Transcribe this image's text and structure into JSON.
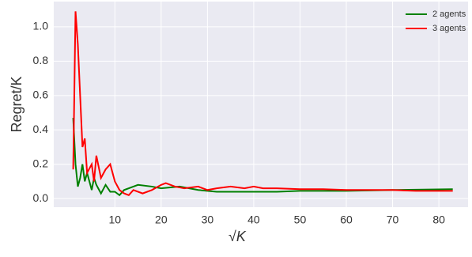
{
  "chart_data": {
    "type": "line",
    "xlabel": "√K",
    "ylabel": "Regret/K",
    "xlim": [
      -3.2,
      86.3
    ],
    "ylim": [
      -0.05,
      1.147
    ],
    "xticks": [
      10,
      20,
      30,
      40,
      50,
      60,
      70,
      80
    ],
    "yticks": [
      {
        "value": 0,
        "label": "0.0"
      },
      0.2,
      0.4,
      0.6,
      0.8,
      {
        "value": 1,
        "label": "1.0"
      }
    ],
    "grid": true,
    "legend": "upper right",
    "series": [
      {
        "name": "2 agents",
        "color": "#008000",
        "x": [
          1,
          1.5,
          2,
          2.5,
          3,
          3.5,
          4,
          5,
          5.5,
          6,
          7,
          8,
          9,
          10,
          11,
          12,
          14,
          15,
          18,
          20,
          24,
          28,
          32,
          40,
          45,
          50,
          60,
          70,
          83
        ],
        "values": [
          0.47,
          0.2,
          0.07,
          0.12,
          0.2,
          0.1,
          0.15,
          0.05,
          0.12,
          0.08,
          0.03,
          0.08,
          0.04,
          0.04,
          0.02,
          0.05,
          0.07,
          0.08,
          0.07,
          0.06,
          0.07,
          0.05,
          0.04,
          0.04,
          0.04,
          0.045,
          0.045,
          0.05,
          0.055
        ]
      },
      {
        "name": "3 agents",
        "color": "#ff0000",
        "x": [
          1,
          1.5,
          2,
          2.5,
          3,
          3.5,
          4,
          5,
          5.5,
          6,
          7,
          8,
          9,
          10,
          11,
          12,
          13,
          14,
          16,
          18,
          20,
          21,
          23,
          25,
          28,
          30,
          32,
          35,
          38,
          40,
          42,
          45,
          50,
          55,
          60,
          65,
          70,
          75,
          80,
          83
        ],
        "values": [
          0.17,
          1.09,
          0.9,
          0.6,
          0.3,
          0.35,
          0.15,
          0.2,
          0.1,
          0.25,
          0.12,
          0.17,
          0.2,
          0.1,
          0.05,
          0.03,
          0.02,
          0.05,
          0.03,
          0.05,
          0.08,
          0.09,
          0.07,
          0.06,
          0.07,
          0.05,
          0.06,
          0.07,
          0.06,
          0.07,
          0.06,
          0.06,
          0.055,
          0.055,
          0.05,
          0.05,
          0.05,
          0.045,
          0.045,
          0.045
        ]
      }
    ]
  }
}
